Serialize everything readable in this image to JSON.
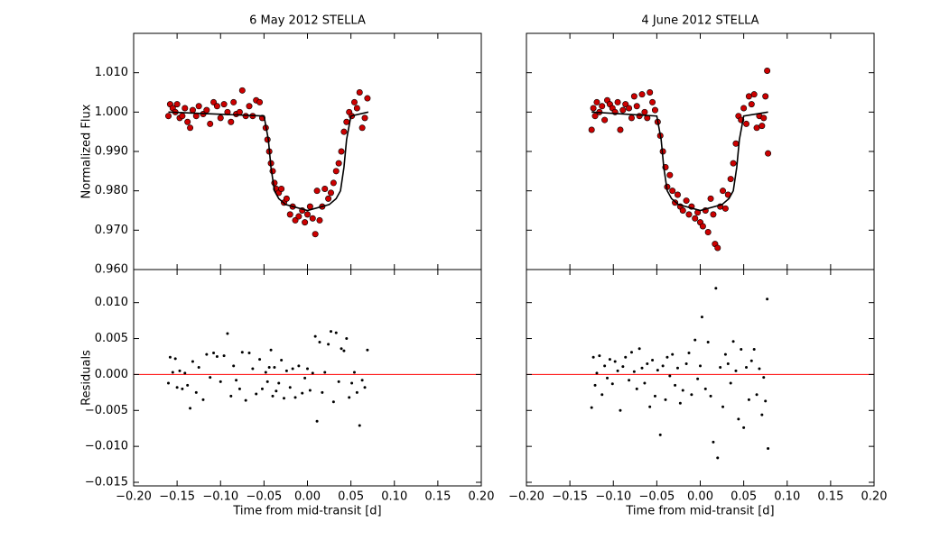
{
  "chart_data": [
    {
      "type": "scatter",
      "title": "6 May 2012 STELLA",
      "ylabel": "Normalized Flux",
      "xlim": [
        -0.2,
        0.2
      ],
      "ylim": [
        0.96,
        1.02
      ],
      "xticks": [
        -0.2,
        -0.15,
        -0.1,
        -0.05,
        0,
        0.05,
        0.1,
        0.15,
        0.2
      ],
      "yticks": [
        {
          "value": 0.96,
          "label": "0.960"
        },
        {
          "value": 0.97,
          "label": "0.970"
        },
        {
          "value": 0.98,
          "label": "0.980"
        },
        {
          "value": 0.99,
          "label": "0.990"
        },
        {
          "value": 1.0,
          "label": "1.000"
        },
        {
          "value": 1.01,
          "label": "1.010"
        }
      ],
      "points": {
        "color": "#cc0000",
        "x": [
          -0.16,
          -0.158,
          -0.155,
          -0.152,
          -0.15,
          -0.147,
          -0.144,
          -0.141,
          -0.138,
          -0.135,
          -0.132,
          -0.128,
          -0.125,
          -0.12,
          -0.116,
          -0.112,
          -0.108,
          -0.104,
          -0.1,
          -0.096,
          -0.092,
          -0.088,
          -0.085,
          -0.082,
          -0.078,
          -0.075,
          -0.071,
          -0.067,
          -0.063,
          -0.059,
          -0.055,
          -0.052,
          -0.048,
          -0.046,
          -0.044,
          -0.042,
          -0.04,
          -0.038,
          -0.036,
          -0.033,
          -0.03,
          -0.027,
          -0.024,
          -0.02,
          -0.017,
          -0.014,
          -0.01,
          -0.006,
          -0.003,
          0.0,
          0.003,
          0.006,
          0.009,
          0.011,
          0.014,
          0.017,
          0.02,
          0.024,
          0.027,
          0.03,
          0.033,
          0.036,
          0.039,
          0.042,
          0.045,
          0.048,
          0.051,
          0.054,
          0.057,
          0.06,
          0.063,
          0.066,
          0.069
        ],
        "values": [
          0.999,
          1.002,
          1.001,
          1.0,
          1.002,
          0.9985,
          0.999,
          1.001,
          0.9975,
          0.996,
          1.0005,
          0.999,
          1.0015,
          0.9995,
          1.0005,
          0.997,
          1.0025,
          1.0015,
          0.9985,
          1.002,
          1.0,
          0.9975,
          1.0025,
          0.9995,
          1.0,
          1.0055,
          0.999,
          1.0015,
          0.999,
          1.003,
          1.0025,
          0.9985,
          0.996,
          0.993,
          0.99,
          0.987,
          0.985,
          0.982,
          0.9805,
          0.9795,
          0.9805,
          0.977,
          0.978,
          0.974,
          0.976,
          0.9725,
          0.9735,
          0.975,
          0.972,
          0.974,
          0.976,
          0.973,
          0.969,
          0.98,
          0.9725,
          0.976,
          0.9805,
          0.978,
          0.9795,
          0.982,
          0.985,
          0.987,
          0.99,
          0.995,
          0.9975,
          1.0,
          0.999,
          1.0025,
          1.001,
          1.005,
          0.996,
          0.9985,
          1.0035
        ]
      },
      "model": {
        "color": "#000000",
        "x": [
          -0.16,
          -0.05,
          -0.045,
          -0.042,
          -0.038,
          -0.033,
          -0.025,
          0,
          0.025,
          0.033,
          0.038,
          0.042,
          0.045,
          0.05,
          0.07
        ],
        "values": [
          1,
          0.999,
          0.993,
          0.986,
          0.98,
          0.978,
          0.9765,
          0.975,
          0.9765,
          0.978,
          0.98,
          0.986,
          0.993,
          0.999,
          1
        ]
      }
    },
    {
      "type": "scatter",
      "title": "4 June 2012 STELLA",
      "xlim": [
        -0.2,
        0.2
      ],
      "ylim": [
        0.96,
        1.02
      ],
      "xticks": [
        -0.2,
        -0.15,
        -0.1,
        -0.05,
        0,
        0.05,
        0.1,
        0.15,
        0.2
      ],
      "yticks": [
        0.96,
        0.97,
        0.98,
        0.99,
        1.0,
        1.01
      ],
      "points": {
        "color": "#cc0000",
        "x": [
          -0.125,
          -0.123,
          -0.121,
          -0.119,
          -0.116,
          -0.113,
          -0.11,
          -0.107,
          -0.104,
          -0.101,
          -0.098,
          -0.095,
          -0.092,
          -0.089,
          -0.086,
          -0.082,
          -0.079,
          -0.076,
          -0.073,
          -0.07,
          -0.067,
          -0.064,
          -0.061,
          -0.058,
          -0.055,
          -0.052,
          -0.049,
          -0.046,
          -0.043,
          -0.04,
          -0.038,
          -0.035,
          -0.032,
          -0.029,
          -0.026,
          -0.023,
          -0.02,
          -0.016,
          -0.013,
          -0.01,
          -0.006,
          -0.003,
          0.0,
          0.003,
          0.006,
          0.009,
          0.012,
          0.015,
          0.017,
          0.02,
          0.023,
          0.026,
          0.029,
          0.032,
          0.035,
          0.038,
          0.041,
          0.044,
          0.047,
          0.05,
          0.053,
          0.056,
          0.059,
          0.062,
          0.065,
          0.068,
          0.071,
          0.073,
          0.075,
          0.077,
          0.078
        ],
        "values": [
          0.9955,
          1.001,
          0.999,
          1.0025,
          1.0,
          1.0015,
          0.998,
          1.003,
          1.002,
          1.001,
          1.0,
          1.0025,
          0.9955,
          1.0005,
          1.002,
          1.001,
          0.9985,
          1.004,
          1.0015,
          0.999,
          1.0045,
          1.0,
          0.9985,
          1.005,
          1.0025,
          1.0005,
          0.9975,
          0.994,
          0.99,
          0.986,
          0.981,
          0.984,
          0.98,
          0.977,
          0.979,
          0.976,
          0.975,
          0.9775,
          0.974,
          0.976,
          0.973,
          0.9745,
          0.972,
          0.971,
          0.975,
          0.9695,
          0.978,
          0.974,
          0.9665,
          0.9655,
          0.976,
          0.98,
          0.9755,
          0.979,
          0.983,
          0.987,
          0.992,
          0.999,
          0.998,
          1.001,
          0.997,
          1.004,
          1.002,
          1.0045,
          0.996,
          0.999,
          0.9965,
          0.9985,
          1.004,
          1.0105,
          0.9895
        ]
      },
      "model": {
        "color": "#000000",
        "x": [
          -0.125,
          -0.05,
          -0.045,
          -0.042,
          -0.038,
          -0.033,
          -0.025,
          0,
          0.025,
          0.033,
          0.038,
          0.042,
          0.045,
          0.05,
          0.078
        ],
        "values": [
          1,
          0.999,
          0.993,
          0.986,
          0.98,
          0.978,
          0.9765,
          0.975,
          0.9765,
          0.978,
          0.98,
          0.986,
          0.993,
          0.999,
          1
        ]
      }
    },
    {
      "type": "scatter",
      "xlabel": "Time from mid-transit [d]",
      "ylabel": "Residuals",
      "xlim": [
        -0.2,
        0.2
      ],
      "ylim": [
        -0.0155,
        0.0146
      ],
      "xticks": [
        {
          "value": -0.2,
          "label": "−0.20"
        },
        {
          "value": -0.15,
          "label": "−0.15"
        },
        {
          "value": -0.1,
          "label": "−0.10"
        },
        {
          "value": -0.05,
          "label": "−0.05"
        },
        {
          "value": 0,
          "label": "0.00"
        },
        {
          "value": 0.05,
          "label": "0.05"
        },
        {
          "value": 0.1,
          "label": "0.10"
        },
        {
          "value": 0.15,
          "label": "0.15"
        },
        {
          "value": 0.2,
          "label": "0.20"
        }
      ],
      "yticks": [
        {
          "value": -0.015,
          "label": "−0.015"
        },
        {
          "value": -0.01,
          "label": "−0.010"
        },
        {
          "value": -0.005,
          "label": "−0.005"
        },
        {
          "value": 0,
          "label": "0.000"
        },
        {
          "value": 0.005,
          "label": "0.005"
        },
        {
          "value": 0.01,
          "label": "0.010"
        }
      ],
      "hline": {
        "value": 0,
        "color": "#ff0000"
      },
      "points": {
        "color": "#000000",
        "x": [
          -0.16,
          -0.158,
          -0.155,
          -0.152,
          -0.15,
          -0.147,
          -0.144,
          -0.141,
          -0.138,
          -0.135,
          -0.132,
          -0.128,
          -0.125,
          -0.12,
          -0.116,
          -0.112,
          -0.108,
          -0.104,
          -0.1,
          -0.096,
          -0.092,
          -0.088,
          -0.085,
          -0.082,
          -0.078,
          -0.075,
          -0.071,
          -0.067,
          -0.063,
          -0.059,
          -0.055,
          -0.052,
          -0.048,
          -0.046,
          -0.044,
          -0.042,
          -0.04,
          -0.038,
          -0.036,
          -0.033,
          -0.03,
          -0.027,
          -0.024,
          -0.02,
          -0.017,
          -0.014,
          -0.01,
          -0.006,
          -0.003,
          0.0,
          0.003,
          0.006,
          0.009,
          0.011,
          0.014,
          0.017,
          0.02,
          0.024,
          0.027,
          0.03,
          0.033,
          0.036,
          0.039,
          0.042,
          0.045,
          0.048,
          0.051,
          0.054,
          0.057,
          0.06,
          0.063,
          0.066,
          0.069
        ],
        "values": [
          -0.0012,
          0.0024,
          0.0003,
          0.0022,
          -0.0018,
          0.0005,
          -0.002,
          0.0002,
          -0.0015,
          -0.0047,
          0.0018,
          -0.0025,
          0.001,
          -0.0035,
          0.0028,
          -0.0004,
          0.003,
          0.0025,
          -0.001,
          0.0026,
          0.0057,
          -0.003,
          0.0012,
          -0.0008,
          -0.002,
          0.0031,
          -0.0036,
          0.003,
          0.0008,
          -0.0027,
          0.0021,
          -0.002,
          0.0003,
          -0.001,
          0.001,
          0.0034,
          -0.003,
          0.001,
          -0.0023,
          -0.0012,
          0.002,
          -0.0033,
          0.0005,
          -0.0018,
          0.0008,
          -0.0032,
          0.0012,
          -0.0026,
          -0.0005,
          0.0008,
          -0.0022,
          0.0002,
          0.0053,
          -0.0065,
          0.0045,
          -0.0025,
          0.0003,
          0.0042,
          0.006,
          -0.0038,
          0.0058,
          -0.001,
          0.0036,
          0.0033,
          0.005,
          -0.0032,
          -0.0012,
          0.0003,
          -0.0025,
          -0.0071,
          -0.0008,
          -0.0018,
          0.0034
        ]
      }
    },
    {
      "type": "scatter",
      "xlabel": "Time from mid-transit [d]",
      "xlim": [
        -0.2,
        0.2
      ],
      "ylim": [
        -0.0155,
        0.0146
      ],
      "xticks": [
        {
          "value": -0.2,
          "label": "−0.20"
        },
        {
          "value": -0.15,
          "label": "−0.15"
        },
        {
          "value": -0.1,
          "label": "−0.10"
        },
        {
          "value": -0.05,
          "label": "−0.05"
        },
        {
          "value": 0,
          "label": "0.00"
        },
        {
          "value": 0.05,
          "label": "0.05"
        },
        {
          "value": 0.1,
          "label": "0.10"
        },
        {
          "value": 0.15,
          "label": "0.15"
        },
        {
          "value": 0.2,
          "label": "0.20"
        }
      ],
      "yticks": [
        -0.015,
        -0.01,
        -0.005,
        0,
        0.005,
        0.01
      ],
      "hline": {
        "value": 0,
        "color": "#ff0000"
      },
      "points": {
        "color": "#000000",
        "x": [
          -0.125,
          -0.123,
          -0.121,
          -0.119,
          -0.116,
          -0.113,
          -0.11,
          -0.107,
          -0.104,
          -0.101,
          -0.098,
          -0.095,
          -0.092,
          -0.089,
          -0.086,
          -0.082,
          -0.079,
          -0.076,
          -0.073,
          -0.07,
          -0.067,
          -0.064,
          -0.061,
          -0.058,
          -0.055,
          -0.052,
          -0.049,
          -0.046,
          -0.043,
          -0.04,
          -0.038,
          -0.035,
          -0.032,
          -0.029,
          -0.026,
          -0.023,
          -0.02,
          -0.016,
          -0.013,
          -0.01,
          -0.006,
          -0.003,
          0.0,
          0.002,
          0.006,
          0.009,
          0.012,
          0.015,
          0.018,
          0.02,
          0.023,
          0.026,
          0.029,
          0.032,
          0.035,
          0.038,
          0.041,
          0.044,
          0.047,
          0.05,
          0.053,
          0.056,
          0.059,
          0.062,
          0.065,
          0.068,
          0.071,
          0.073,
          0.075,
          0.077,
          0.078
        ],
        "values": [
          -0.0046,
          0.0024,
          -0.0015,
          0.0002,
          0.0026,
          -0.0028,
          0.0012,
          -0.0005,
          0.0021,
          -0.0013,
          0.0018,
          0.0005,
          -0.005,
          0.0011,
          0.0024,
          -0.0008,
          0.0031,
          0.0004,
          -0.002,
          0.0036,
          0.0009,
          -0.0012,
          0.0015,
          -0.0045,
          0.002,
          -0.003,
          0.0006,
          -0.0084,
          0.0012,
          -0.0035,
          0.0024,
          -0.0002,
          0.0028,
          -0.0015,
          0.0009,
          -0.004,
          -0.0022,
          0.0015,
          0.003,
          -0.0028,
          0.0048,
          -0.0006,
          0.0012,
          0.008,
          -0.002,
          0.0045,
          -0.003,
          -0.0094,
          0.012,
          -0.0116,
          0.001,
          -0.0045,
          0.0028,
          0.0015,
          -0.0012,
          0.0046,
          0.0005,
          -0.0062,
          0.0035,
          -0.0074,
          0.001,
          -0.0035,
          0.0019,
          0.0035,
          -0.0028,
          0.0008,
          -0.0056,
          -0.0004,
          -0.0037,
          0.0105,
          -0.0103
        ]
      }
    }
  ]
}
